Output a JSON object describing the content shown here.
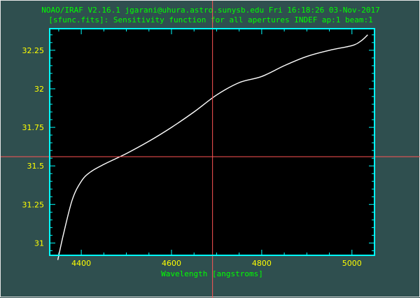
{
  "header": {
    "line1": "NOAO/IRAF V2.16.1 jgarani@uhura.astro.sunysb.edu Fri 16:18:26 03-Nov-2017",
    "line2": "[sfunc.fits]: Sensitivity function for all apertures INDEF ap:1 beam:1"
  },
  "colors": {
    "background": "#2f4f4f",
    "plot_area": "#000000",
    "frame": "#00ffff",
    "curve": "#ffffff",
    "cursor": "#ff5555",
    "text": "#00ff00",
    "tick_labels": "#ffff00"
  },
  "chart_data": {
    "type": "line",
    "title": "[sfunc.fits]: Sensitivity function for all apertures INDEF ap:1 beam:1",
    "xlabel": "Wavelength [angstroms]",
    "ylabel": "",
    "xlim": [
      4330,
      5050
    ],
    "ylim": [
      30.92,
      32.39
    ],
    "x_ticks": [
      4400,
      4600,
      4800,
      5000
    ],
    "x_tick_labels": [
      "4400",
      "4600",
      "4800",
      "5000"
    ],
    "y_ticks": [
      31,
      31.25,
      31.5,
      31.75,
      32,
      32.25
    ],
    "y_tick_labels": [
      "31",
      "31.25",
      "31.5",
      "31.75",
      "32",
      "32.25"
    ],
    "grid": false,
    "cursor": {
      "x": 4691,
      "y": 31.56
    },
    "series": [
      {
        "x": [
          4348,
          4360,
          4380,
          4400,
          4420,
          4450,
          4500,
          4550,
          4600,
          4650,
          4700,
          4750,
          4800,
          4850,
          4900,
          4950,
          5000,
          5020,
          5035
        ],
        "values": [
          30.89,
          31.05,
          31.28,
          31.4,
          31.46,
          31.51,
          31.58,
          31.66,
          31.75,
          31.85,
          31.96,
          32.04,
          32.08,
          32.15,
          32.21,
          32.25,
          32.28,
          32.31,
          32.35
        ]
      }
    ]
  }
}
